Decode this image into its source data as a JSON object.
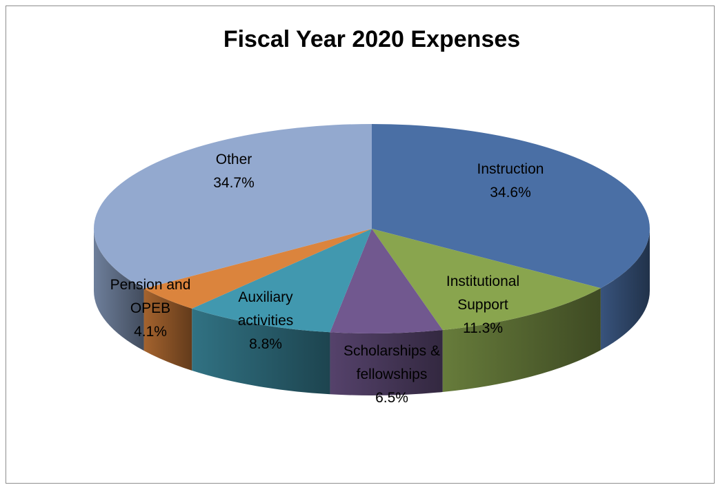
{
  "chart_data": {
    "type": "pie",
    "title": "Fiscal Year 2020 Expenses",
    "slices": [
      {
        "label": [
          "Instruction"
        ],
        "value": 34.6,
        "value_label": "34.6%",
        "color": "#4a6fa5"
      },
      {
        "label": [
          "Institutional",
          "Support"
        ],
        "value": 11.3,
        "value_label": "11.3%",
        "color": "#89a54e"
      },
      {
        "label": [
          "Scholarships &",
          "fellowships"
        ],
        "value": 6.5,
        "value_label": "6.5%",
        "color": "#71588f"
      },
      {
        "label": [
          "Auxiliary",
          "activities"
        ],
        "value": 8.8,
        "value_label": "8.8%",
        "color": "#4198af"
      },
      {
        "label": [
          "Pension and",
          "OPEB"
        ],
        "value": 4.1,
        "value_label": "4.1%",
        "color": "#db843d"
      },
      {
        "label": [
          "Other"
        ],
        "value": 34.7,
        "value_label": "34.7%",
        "color": "#93a9cf"
      }
    ],
    "legend": false,
    "style": "3d-pie"
  }
}
